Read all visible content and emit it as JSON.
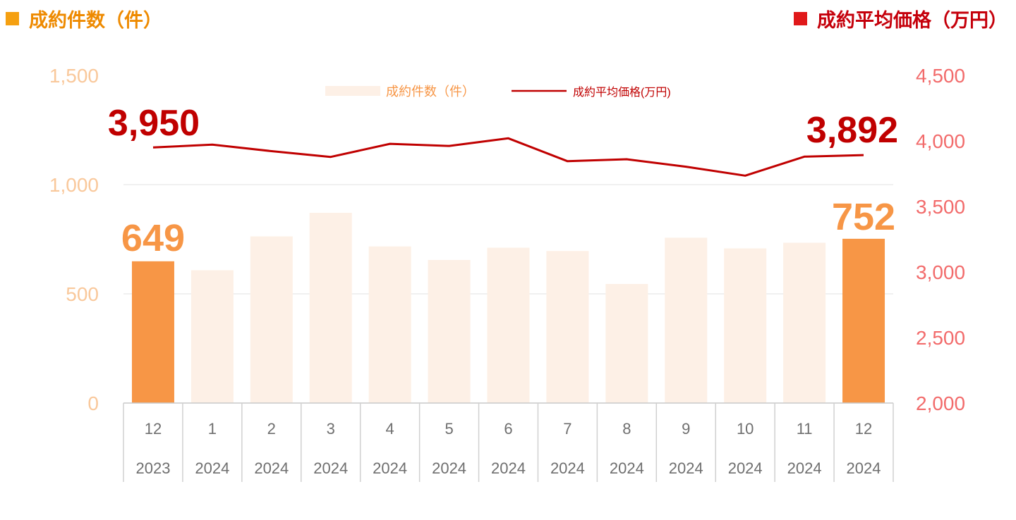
{
  "header": {
    "left_title": "成約件数（件）",
    "right_title": "成約平均価格（万円）"
  },
  "colors": {
    "bar_highlight": "#f79646",
    "bar_faded": "#fdf0e6",
    "line": "#c00000",
    "left_axis_text": "#f9c89b",
    "right_axis_text": "#f26b6b",
    "left_title": "#ee8a00",
    "right_title": "#c5000b",
    "gridline": "#e2e2e2",
    "x_axis_text": "#6f6f6f"
  },
  "chart_data": {
    "type": "bar+line",
    "categories": [
      {
        "month": "12",
        "year": "2023"
      },
      {
        "month": "1",
        "year": "2024"
      },
      {
        "month": "2",
        "year": "2024"
      },
      {
        "month": "3",
        "year": "2024"
      },
      {
        "month": "4",
        "year": "2024"
      },
      {
        "month": "5",
        "year": "2024"
      },
      {
        "month": "6",
        "year": "2024"
      },
      {
        "month": "7",
        "year": "2024"
      },
      {
        "month": "8",
        "year": "2024"
      },
      {
        "month": "9",
        "year": "2024"
      },
      {
        "month": "10",
        "year": "2024"
      },
      {
        "month": "11",
        "year": "2024"
      },
      {
        "month": "12",
        "year": "2024"
      }
    ],
    "series": [
      {
        "name": "成約件数（件）",
        "type": "bar",
        "axis": "left",
        "values": [
          649,
          608,
          763,
          871,
          717,
          655,
          711,
          696,
          545,
          757,
          708,
          734,
          752
        ],
        "highlight_indices": [
          0,
          12
        ]
      },
      {
        "name": "成約平均価格(万円)",
        "type": "line",
        "axis": "right",
        "values": [
          3950,
          3972,
          3922,
          3878,
          3978,
          3962,
          4020,
          3845,
          3860,
          3803,
          3735,
          3880,
          3892
        ]
      }
    ],
    "annotations": [
      {
        "text": "3,950",
        "series": 1,
        "index": 0
      },
      {
        "text": "3,892",
        "series": 1,
        "index": 12
      },
      {
        "text": "649",
        "series": 0,
        "index": 0
      },
      {
        "text": "752",
        "series": 0,
        "index": 12
      }
    ],
    "left_axis": {
      "min": 0,
      "max": 1500,
      "ticks": [
        "0",
        "500",
        "1,000",
        "1,500"
      ],
      "tick_values": [
        0,
        500,
        1000,
        1500
      ]
    },
    "right_axis": {
      "min": 2000,
      "max": 4500,
      "ticks": [
        "2,000",
        "2,500",
        "3,000",
        "3,500",
        "4,000",
        "4,500"
      ],
      "tick_values": [
        2000,
        2500,
        3000,
        3500,
        4000,
        4500
      ]
    },
    "grid": true,
    "legend_position": "top-center"
  }
}
